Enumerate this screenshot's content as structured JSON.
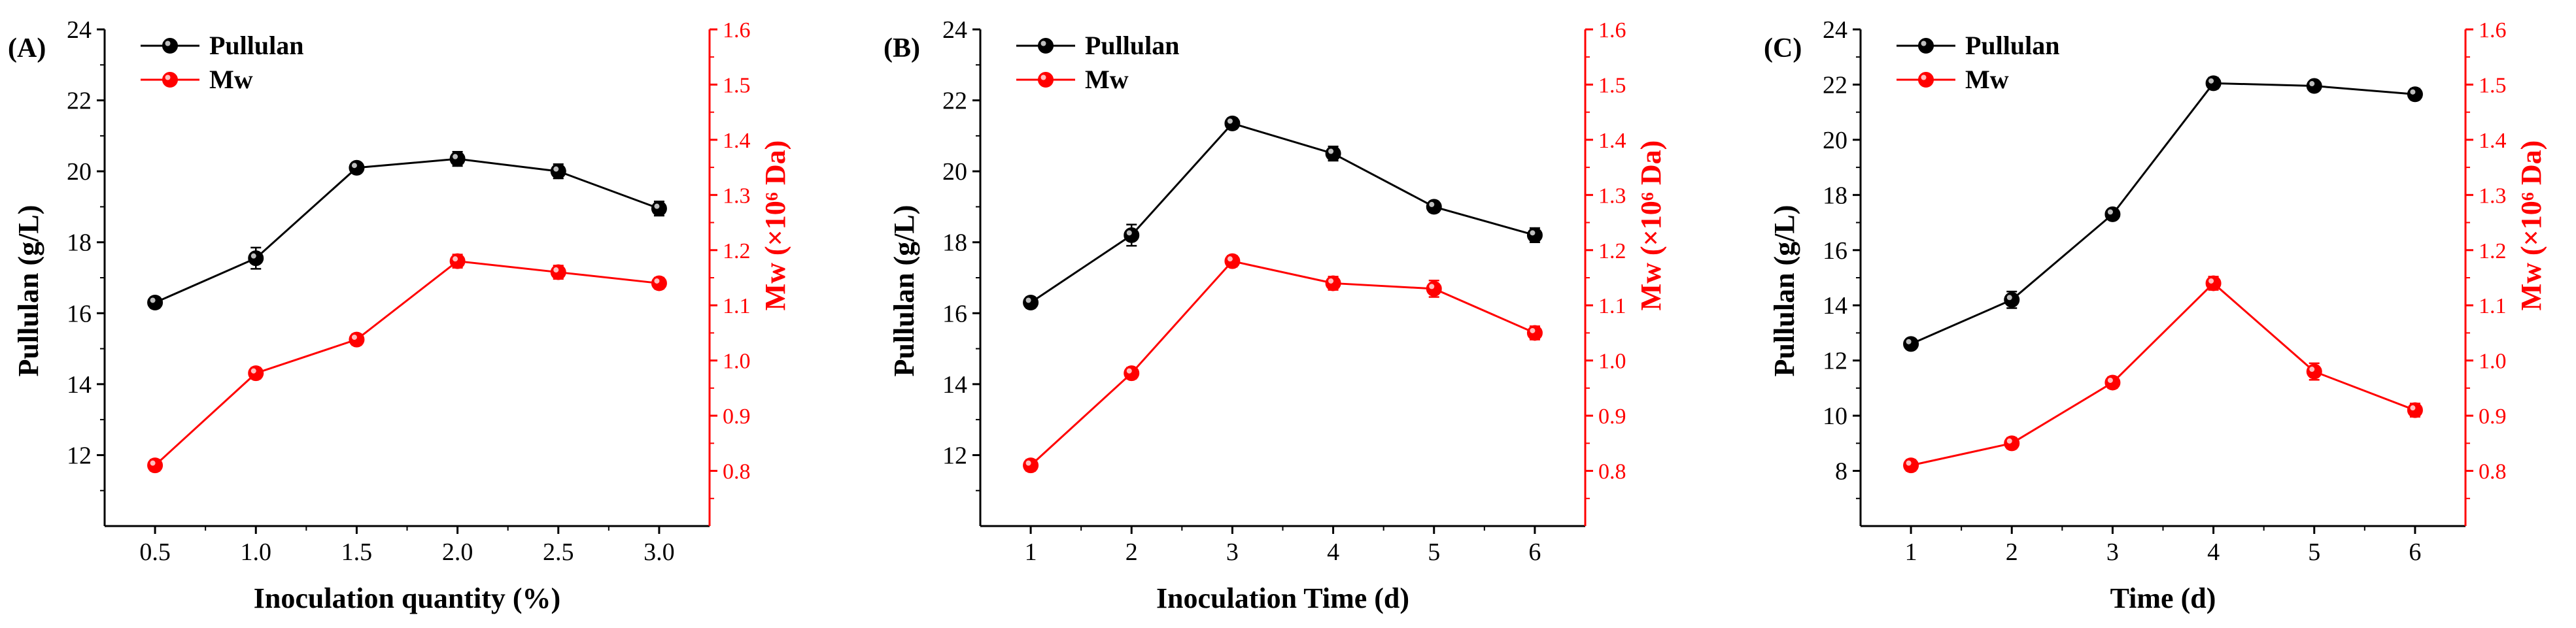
{
  "chart_data": [
    {
      "type": "line",
      "panel_label": "(A)",
      "xlabel": "Inoculation quantity (%)",
      "ylabel": "Pullulan (g/L)",
      "y2label": "Mw (×10⁶ Da)",
      "categories": [
        "0.5",
        "1.0",
        "1.5",
        "2.0",
        "2.5",
        "3.0"
      ],
      "x": [
        0.5,
        1.0,
        1.5,
        2.0,
        2.5,
        3.0
      ],
      "xlim": [
        0.25,
        3.25
      ],
      "ylim": [
        10,
        24
      ],
      "yticks": [
        12,
        14,
        16,
        18,
        20,
        22,
        24
      ],
      "y2lim": [
        0.7,
        1.6
      ],
      "y2ticks": [
        "0.8",
        "0.9",
        "1.0",
        "1.1",
        "1.2",
        "1.3",
        "1.4",
        "1.5",
        "1.6"
      ],
      "series": [
        {
          "name": "Pullulan",
          "axis": "left",
          "color": "#000000",
          "values": [
            16.3,
            17.55,
            20.1,
            20.35,
            20.0,
            18.95
          ],
          "errors": [
            0.15,
            0.3,
            0.15,
            0.2,
            0.2,
            0.2
          ]
        },
        {
          "name": "Mw",
          "axis": "right",
          "color": "#ff0000",
          "values": [
            0.81,
            0.977,
            1.038,
            1.18,
            1.16,
            1.14
          ],
          "errors": [
            0.01,
            0.01,
            0.01,
            0.012,
            0.012,
            0.01
          ]
        }
      ],
      "legend": "top-left"
    },
    {
      "type": "line",
      "panel_label": "(B)",
      "xlabel": "Inoculation Time (d)",
      "ylabel": "Pullulan (g/L)",
      "y2label": "Mw (×10⁶ Da)",
      "categories": [
        "1",
        "2",
        "3",
        "4",
        "5",
        "6"
      ],
      "x": [
        1,
        2,
        3,
        4,
        5,
        6
      ],
      "xlim": [
        0.5,
        6.5
      ],
      "ylim": [
        10,
        24
      ],
      "yticks": [
        12,
        14,
        16,
        18,
        20,
        22,
        24
      ],
      "y2lim": [
        0.7,
        1.6
      ],
      "y2ticks": [
        "0.8",
        "0.9",
        "1.0",
        "1.1",
        "1.2",
        "1.3",
        "1.4",
        "1.5",
        "1.6"
      ],
      "series": [
        {
          "name": "Pullulan",
          "axis": "left",
          "color": "#000000",
          "values": [
            16.3,
            18.2,
            21.35,
            20.5,
            19.0,
            18.2
          ],
          "errors": [
            0.15,
            0.3,
            0.15,
            0.2,
            0.15,
            0.2
          ]
        },
        {
          "name": "Mw",
          "axis": "right",
          "color": "#ff0000",
          "values": [
            0.81,
            0.977,
            1.18,
            1.14,
            1.13,
            1.05
          ],
          "errors": [
            0.01,
            0.01,
            0.01,
            0.012,
            0.015,
            0.012
          ]
        }
      ],
      "legend": "top-left"
    },
    {
      "type": "line",
      "panel_label": "(C)",
      "xlabel": "Time (d)",
      "ylabel": "Pullulan (g/L)",
      "y2label": "Mw (×10⁶ Da)",
      "categories": [
        "1",
        "2",
        "3",
        "4",
        "5",
        "6"
      ],
      "x": [
        1,
        2,
        3,
        4,
        5,
        6
      ],
      "xlim": [
        0.5,
        6.5
      ],
      "ylim": [
        6,
        24
      ],
      "yticks": [
        8,
        10,
        12,
        14,
        16,
        18,
        20,
        22,
        24
      ],
      "y2lim": [
        0.7,
        1.6
      ],
      "y2ticks": [
        "0.8",
        "0.9",
        "1.0",
        "1.1",
        "1.2",
        "1.3",
        "1.4",
        "1.5",
        "1.6"
      ],
      "series": [
        {
          "name": "Pullulan",
          "axis": "left",
          "color": "#000000",
          "values": [
            12.6,
            14.2,
            17.3,
            22.05,
            21.95,
            21.65
          ],
          "errors": [
            0.15,
            0.3,
            0.15,
            0.2,
            0.15,
            0.2
          ]
        },
        {
          "name": "Mw",
          "axis": "right",
          "color": "#ff0000",
          "values": [
            0.81,
            0.85,
            0.96,
            1.14,
            0.98,
            0.91
          ],
          "errors": [
            0.01,
            0.01,
            0.01,
            0.012,
            0.015,
            0.012
          ]
        }
      ],
      "legend": "top-left"
    }
  ]
}
